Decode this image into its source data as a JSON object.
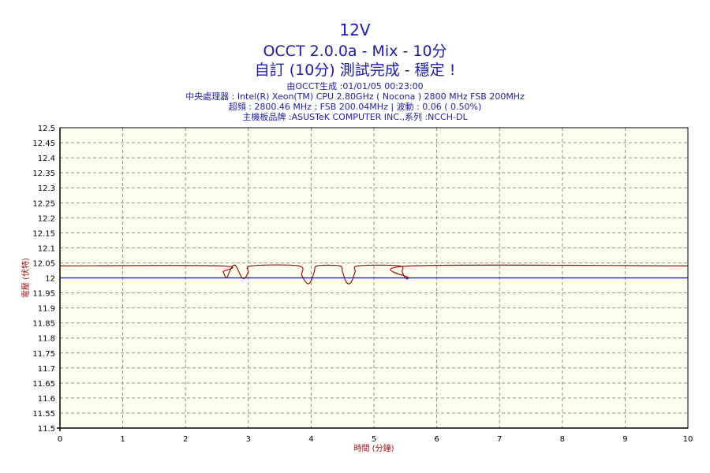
{
  "header": {
    "title": "12V",
    "subtitle": "OCCT 2.0.0a - Mix - 10分",
    "status": "自訂 (10分) 測試完成 - 穩定 !",
    "generated": "由OCCT生成 :01/01/05 00:23:00",
    "cpu": "中央處理器 : Intel(R) Xeon(TM) CPU 2.80GHz ( Nocona ) 2800 MHz FSB 200MHz",
    "oc": "超頻 : 2800.46 MHz ; FSB 200.04MHz | 波動 : 0.06 ( 0.50%)",
    "board": "主機板品牌 :ASUSTeK COMPUTER INC.,系列 :NCCH-DL"
  },
  "chart_data": {
    "type": "line",
    "xlabel": "時間 (分鐘)",
    "ylabel": "電壓 (伏特)",
    "xlim": [
      0,
      10
    ],
    "ylim": [
      11.5,
      12.5
    ],
    "x_ticks": [
      "0",
      "1",
      "2",
      "3",
      "4",
      "5",
      "6",
      "7",
      "8",
      "9",
      "10"
    ],
    "y_ticks": [
      "12.5",
      "12.45",
      "12.4",
      "12.35",
      "12.3",
      "12.25",
      "12.2",
      "12.15",
      "12.1",
      "12.05",
      "12",
      "11.95",
      "11.9",
      "11.85",
      "11.8",
      "11.75",
      "11.7",
      "11.65",
      "11.6",
      "11.55",
      "11.5"
    ],
    "grid": true,
    "colors": {
      "voltage": "#a01010",
      "reference": "#1010c0",
      "background": "#fffff0",
      "grid": "#909090"
    },
    "series": [
      {
        "x": [
          0,
          2.55,
          2.6,
          2.65,
          2.7,
          2.75,
          2.8,
          2.85,
          2.9,
          2.95,
          3.0,
          3.05,
          3.8,
          3.85,
          3.9,
          3.95,
          4.0,
          4.05,
          4.1,
          4.45,
          4.5,
          4.55,
          4.6,
          4.65,
          4.7,
          4.75,
          5.4,
          5.45,
          5.5,
          5.55,
          5.6,
          10
        ],
        "y": [
          12.04,
          12.04,
          12.02,
          12.0,
          12.02,
          12.04,
          12.04,
          12.02,
          12.0,
          12.0,
          12.02,
          12.04,
          12.04,
          12.01,
          11.99,
          11.98,
          11.99,
          12.02,
          12.04,
          12.04,
          12.02,
          11.99,
          11.98,
          11.99,
          12.02,
          12.04,
          12.04,
          12.02,
          12.0,
          12.0,
          12.04,
          12.04
        ]
      },
      {
        "x": [
          0,
          10
        ],
        "y": [
          12.0,
          12.0
        ]
      }
    ]
  }
}
